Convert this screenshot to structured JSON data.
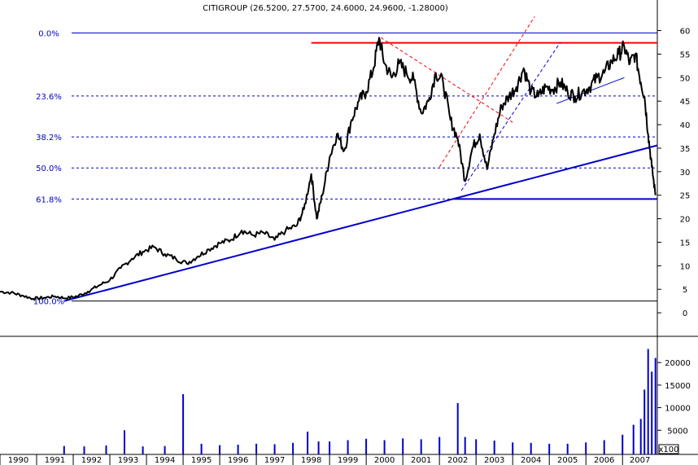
{
  "chart_data": [
    {
      "type": "line",
      "title": "CITIGROUP (26.5200, 27.5700, 24.6000, 24.9600, -1.28000)",
      "xlabel": "",
      "ylabel": "",
      "xlim": [
        1990.0,
        2007.95
      ],
      "ylim": [
        -5,
        62
      ],
      "yticks": [
        0,
        5,
        10,
        15,
        20,
        25,
        30,
        35,
        40,
        45,
        50,
        55,
        60
      ],
      "xticks": [
        "1990",
        "1991",
        "1992",
        "1993",
        "1994",
        "1995",
        "1996",
        "1997",
        "1998",
        "1999",
        "2000",
        "2001",
        "2002",
        "2003",
        "2004",
        "2005",
        "2006",
        "2007"
      ],
      "grid": false,
      "colors": {
        "price": "#000000",
        "fib": "#0000cc",
        "resistance": "#ff0000",
        "trend": "#0000cc",
        "channel": "#ff0000"
      },
      "series": [
        {
          "x": [
            1990.0,
            1990.3,
            1990.6,
            1990.9,
            1991.2,
            1991.5,
            1991.8,
            1992.1,
            1992.4,
            1992.7,
            1993.0,
            1993.3,
            1993.6,
            1993.9,
            1994.2,
            1994.5,
            1994.8,
            1995.1,
            1995.4,
            1995.7,
            1996.0,
            1996.3,
            1996.6,
            1996.9,
            1997.2,
            1997.5,
            1997.8,
            1998.1,
            1998.3,
            1998.5,
            1998.65,
            1998.8,
            1999.0,
            1999.2,
            1999.4,
            1999.6,
            1999.8,
            2000.0,
            2000.2,
            2000.35,
            2000.5,
            2000.7,
            2000.9,
            2001.1,
            2001.3,
            2001.5,
            2001.7,
            2001.9,
            2002.1,
            2002.3,
            2002.5,
            2002.7,
            2002.9,
            2003.1,
            2003.3,
            2003.5,
            2003.7,
            2003.9,
            2004.1,
            2004.3,
            2004.5,
            2004.7,
            2004.9,
            2005.1,
            2005.3,
            2005.5,
            2005.7,
            2005.9,
            2006.1,
            2006.3,
            2006.5,
            2006.7,
            2006.9,
            2007.05,
            2007.2,
            2007.35,
            2007.5,
            2007.6,
            2007.7,
            2007.8,
            2007.9
          ],
          "values": [
            4.5,
            4.3,
            3.7,
            3.0,
            3.2,
            3.5,
            3.1,
            3.5,
            4.5,
            5.8,
            7.0,
            9.5,
            11.5,
            13.0,
            14.0,
            12.5,
            11.5,
            10.5,
            12.0,
            13.5,
            14.8,
            15.5,
            17.5,
            16.5,
            17.0,
            15.5,
            17.5,
            18.5,
            22.0,
            29.5,
            20.0,
            25.0,
            33.0,
            38.0,
            34.5,
            41.0,
            45.0,
            47.0,
            52.0,
            58.5,
            53.0,
            50.0,
            53.0,
            51.0,
            49.5,
            42.5,
            45.0,
            51.0,
            49.0,
            41.0,
            37.0,
            28.0,
            35.0,
            38.0,
            30.5,
            38.0,
            44.0,
            46.0,
            48.0,
            52.0,
            47.0,
            46.0,
            48.0,
            47.5,
            49.0,
            47.0,
            46.0,
            47.0,
            48.0,
            50.0,
            51.0,
            53.5,
            55.0,
            56.5,
            53.0,
            55.0,
            49.0,
            46.0,
            38.0,
            31.0,
            25.0
          ]
        }
      ],
      "fib_levels": [
        {
          "label": "0.0%",
          "value": 59.5
        },
        {
          "label": "23.6%",
          "value": 46.1
        },
        {
          "label": "38.2%",
          "value": 37.4
        },
        {
          "label": "50.0%",
          "value": 30.8
        },
        {
          "label": "61.8%",
          "value": 24.2
        },
        {
          "label": "100.0%",
          "value": 2.5
        }
      ],
      "resistance": {
        "x": [
          1998.5,
          2007.95
        ],
        "value": 57.4
      },
      "trendlines": [
        {
          "x": [
            1991.75,
            2007.95
          ],
          "values": [
            2.5,
            35.6
          ]
        },
        {
          "x": [
            2002.4,
            2007.95
          ],
          "values": [
            24.2,
            24.2
          ]
        },
        {
          "x": [
            2005.2,
            2007.05
          ],
          "values": [
            44.5,
            50.0
          ]
        }
      ],
      "dashed_lines": [
        {
          "color": "#ff0000",
          "x": [
            2000.4,
            2004.0
          ],
          "values": [
            58.5,
            40.5
          ]
        },
        {
          "color": "#ff0000",
          "x": [
            2002.0,
            2004.6
          ],
          "values": [
            31.0,
            63.0
          ]
        },
        {
          "color": "#0000cc",
          "x": [
            2002.6,
            2005.3
          ],
          "values": [
            26.0,
            57.5
          ]
        }
      ]
    },
    {
      "type": "bar",
      "title": "",
      "xlabel": "",
      "ylabel": "",
      "unit": "x100",
      "ylim": [
        0,
        24000
      ],
      "yticks": [
        5000,
        10000,
        15000,
        20000
      ],
      "color": "#0000cc",
      "x": [
        1991.75,
        1992.3,
        1992.9,
        1993.4,
        1993.9,
        1994.5,
        1995.0,
        1995.5,
        1996.0,
        1996.5,
        1997.0,
        1997.5,
        1998.0,
        1998.4,
        1998.7,
        1999.0,
        1999.5,
        2000.0,
        2000.5,
        2001.0,
        2001.5,
        2002.0,
        2002.5,
        2002.7,
        2003.0,
        2003.5,
        2004.0,
        2004.5,
        2005.0,
        2005.5,
        2006.0,
        2006.5,
        2007.0,
        2007.3,
        2007.5,
        2007.6,
        2007.7,
        2007.8,
        2007.9
      ],
      "values": [
        1500,
        1400,
        1600,
        5000,
        1400,
        1500,
        13000,
        2000,
        1700,
        1800,
        2000,
        1900,
        2200,
        4700,
        2500,
        2500,
        2800,
        3100,
        2800,
        3200,
        3000,
        3500,
        11000,
        3500,
        3000,
        2700,
        2300,
        2200,
        2000,
        2000,
        2300,
        2800,
        4000,
        6200,
        7500,
        14000,
        23000,
        18000,
        21000
      ]
    }
  ]
}
